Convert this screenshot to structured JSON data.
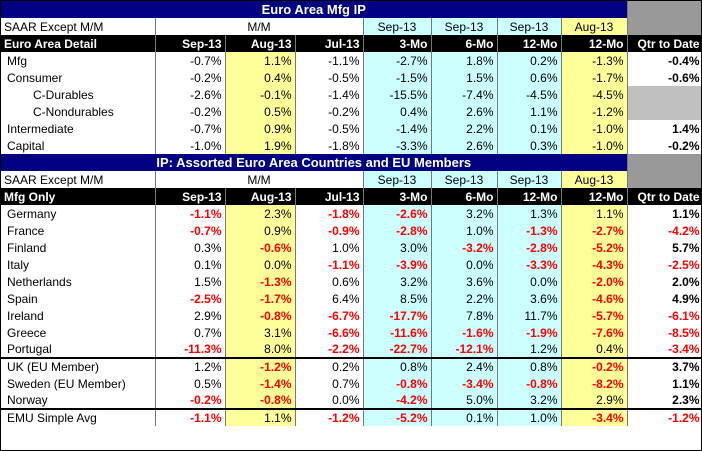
{
  "top": {
    "title": "Euro Area Mfg IP",
    "saar": "SAAR Except M/M",
    "mm": "M/M",
    "sub": [
      "Sep-13",
      "Sep-13",
      "Sep-13",
      "Aug-13"
    ],
    "detail": "Euro Area Detail",
    "headers": [
      "Sep-13",
      "Aug-13",
      "Jul-13",
      "3-Mo",
      "6-Mo",
      "12-Mo",
      "12-Mo",
      "Qtr to Date"
    ],
    "rows": [
      {
        "label": "Mfg",
        "vals": [
          "-0.7%",
          "1.1%",
          "-1.1%",
          "-2.7%",
          "1.8%",
          "0.2%",
          "-1.3%",
          "-0.4%"
        ]
      },
      {
        "label": "Consumer",
        "vals": [
          "-0.2%",
          "0.4%",
          "-0.5%",
          "-1.5%",
          "1.5%",
          "0.6%",
          "-1.7%",
          "-0.6%"
        ]
      },
      {
        "label": "C-Durables",
        "vals": [
          "-2.6%",
          "-0.1%",
          "-1.4%",
          "-15.5%",
          "-7.4%",
          "-4.5%",
          "-4.5%",
          ""
        ]
      },
      {
        "label": "C-Nondurables",
        "vals": [
          "-0.2%",
          "0.5%",
          "-0.2%",
          "0.4%",
          "2.6%",
          "1.1%",
          "-1.2%",
          ""
        ]
      },
      {
        "label": "Intermediate",
        "vals": [
          "-0.7%",
          "0.9%",
          "-0.5%",
          "-1.4%",
          "2.2%",
          "0.1%",
          "-1.0%",
          "1.4%"
        ]
      },
      {
        "label": "Capital",
        "vals": [
          "-1.0%",
          "1.9%",
          "-1.8%",
          "-3.3%",
          "2.6%",
          "0.3%",
          "-1.0%",
          "-0.2%"
        ]
      }
    ]
  },
  "bottom": {
    "title": "IP: Assorted Euro Area Countries and EU Members",
    "saar": "SAAR Except M/M",
    "mm": "M/M",
    "sub": [
      "Sep-13",
      "Sep-13",
      "Sep-13",
      "Aug-13"
    ],
    "detail": "Mfg Only",
    "headers": [
      "Sep-13",
      "Aug-13",
      "Jul-13",
      "3-Mo",
      "6-Mo",
      "12-Mo",
      "12-Mo",
      "Qtr to Date"
    ],
    "countries": [
      {
        "label": "Germany",
        "vals": [
          "-1.1%",
          "2.3%",
          "-1.8%",
          "-2.6%",
          "3.2%",
          "1.3%",
          "1.1%",
          "1.1%"
        ]
      },
      {
        "label": "France",
        "vals": [
          "-0.7%",
          "0.9%",
          "-0.9%",
          "-2.8%",
          "1.0%",
          "-1.3%",
          "-2.7%",
          "-4.2%"
        ]
      },
      {
        "label": "Finland",
        "vals": [
          "0.3%",
          "-0.6%",
          "1.0%",
          "3.0%",
          "-3.2%",
          "-2.8%",
          "-5.2%",
          "5.7%"
        ]
      },
      {
        "label": "Italy",
        "vals": [
          "0.1%",
          "0.0%",
          "-1.1%",
          "-3.9%",
          "0.0%",
          "-3.3%",
          "-4.3%",
          "-2.5%"
        ]
      },
      {
        "label": "Netherlands",
        "vals": [
          "1.5%",
          "-1.3%",
          "0.6%",
          "3.2%",
          "3.6%",
          "0.0%",
          "-2.0%",
          "2.0%"
        ]
      },
      {
        "label": "Spain",
        "vals": [
          "-2.5%",
          "-1.7%",
          "6.4%",
          "8.5%",
          "2.2%",
          "3.6%",
          "-4.6%",
          "4.9%"
        ]
      },
      {
        "label": "Ireland",
        "vals": [
          "2.9%",
          "-0.8%",
          "-6.7%",
          "-17.7%",
          "7.8%",
          "11.7%",
          "-5.7%",
          "-6.1%"
        ]
      },
      {
        "label": "Greece",
        "vals": [
          "0.7%",
          "3.1%",
          "-6.6%",
          "-11.6%",
          "-1.6%",
          "-1.9%",
          "-7.6%",
          "-8.5%"
        ]
      },
      {
        "label": "Portugal",
        "vals": [
          "-11.3%",
          "8.0%",
          "-2.2%",
          "-22.7%",
          "-12.1%",
          "1.2%",
          "0.4%",
          "-3.4%"
        ]
      }
    ],
    "eu": [
      {
        "label": "UK (EU Member)",
        "vals": [
          "1.2%",
          "-1.2%",
          "0.2%",
          "0.8%",
          "2.4%",
          "0.8%",
          "-0.2%",
          "3.7%"
        ]
      },
      {
        "label": "Sweden (EU Member)",
        "vals": [
          "0.5%",
          "-1.4%",
          "0.7%",
          "-0.8%",
          "-3.4%",
          "-0.8%",
          "-8.2%",
          "1.1%"
        ]
      },
      {
        "label": "Norway",
        "vals": [
          "-0.2%",
          "-0.8%",
          "0.0%",
          "-4.2%",
          "5.0%",
          "3.2%",
          "2.9%",
          "2.3%"
        ]
      }
    ],
    "avg": {
      "label": "EMU Simple Avg",
      "vals": [
        "-1.1%",
        "1.1%",
        "-1.2%",
        "-5.2%",
        "0.1%",
        "1.0%",
        "-3.4%",
        "-1.2%"
      ]
    }
  },
  "colors": {
    "navy": "#000080",
    "cyan": "#ccffff",
    "yellow": "#ffff99",
    "negative": "#ff0000",
    "gray": "#999999"
  }
}
